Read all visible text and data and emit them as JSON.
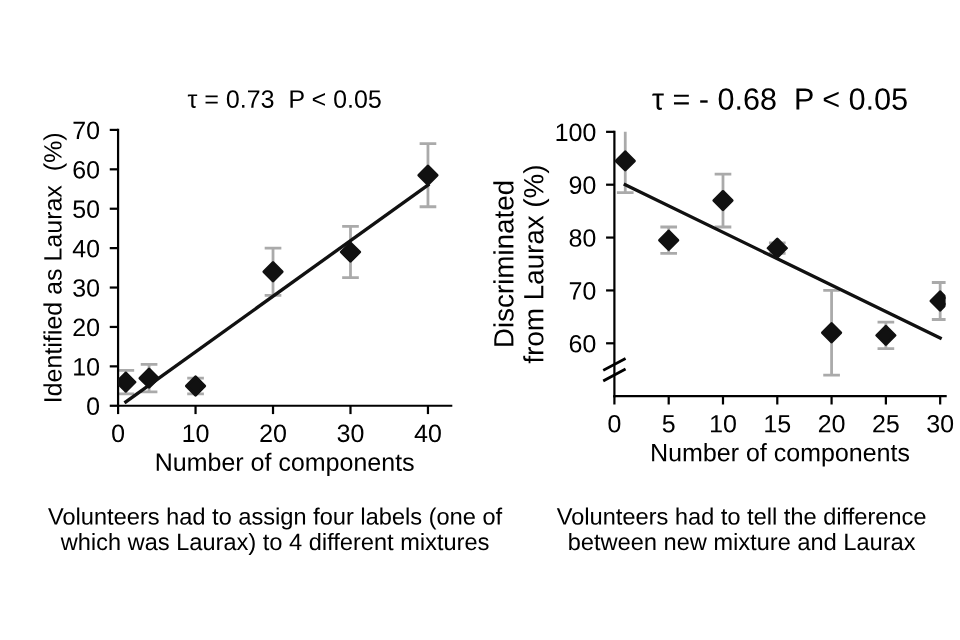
{
  "chart_data": [
    {
      "type": "scatter",
      "title": "τ = 0.73  P < 0.05",
      "xlabel": "Number of components",
      "ylabel": "Identified as Laurax  (%)",
      "series": [
        {
          "color": "#111111",
          "x": [
            1,
            4,
            10,
            20,
            30,
            40
          ],
          "values": [
            6,
            7,
            5,
            34,
            39,
            58.5
          ],
          "errors": [
            3,
            3.5,
            2,
            6,
            6.5,
            8
          ],
          "marker": "diamond"
        },
        {
          "type": "line",
          "color": "#111111",
          "x": [
            1,
            40
          ],
          "values": [
            1,
            56
          ]
        }
      ],
      "xlim": [
        0,
        43
      ],
      "ylim": [
        0,
        70
      ],
      "xticks": [
        0,
        10,
        20,
        30,
        40
      ],
      "yticks": [
        0,
        10,
        20,
        30,
        40,
        50,
        60,
        70
      ],
      "grid": false,
      "legend": false,
      "annotations": [
        "Volunteers had to assign four labels (one of\nwhich was Laurax) to 4 different mixtures"
      ]
    },
    {
      "type": "scatter",
      "title": "τ = - 0.68  P < 0.05",
      "xlabel": "Number of components",
      "ylabel": "Discriminated\nfrom Laurax (%)",
      "series": [
        {
          "color": "#111111",
          "x": [
            1,
            5,
            10,
            15,
            20,
            25,
            30
          ],
          "values": [
            94.5,
            79.5,
            87,
            78,
            62,
            61.5,
            68
          ],
          "errors": [
            6,
            2.5,
            5,
            1,
            8,
            2.5,
            3.5
          ],
          "marker": "diamond"
        },
        {
          "type": "line",
          "color": "#111111",
          "x": [
            1,
            30
          ],
          "values": [
            90,
            61
          ]
        }
      ],
      "xlim": [
        0,
        30.5
      ],
      "ylim": [
        50,
        100
      ],
      "xticks": [
        0,
        5,
        10,
        15,
        20,
        25,
        30
      ],
      "yticks": [
        60,
        70,
        80,
        90,
        100
      ],
      "grid": false,
      "legend": false,
      "annotations": [
        "Volunteers had to tell the difference\nbetween new mixture and Laurax"
      ]
    }
  ]
}
